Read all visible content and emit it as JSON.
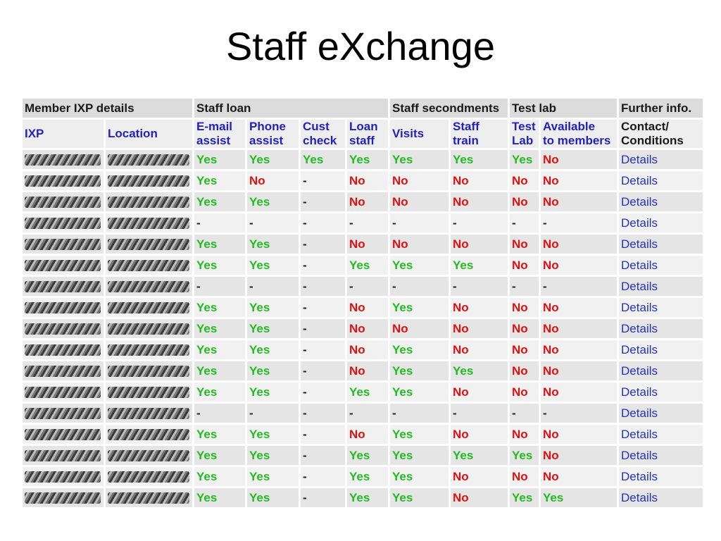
{
  "title": "Staff eXchange",
  "colors": {
    "yes": "#22bb22",
    "no": "#dd1111",
    "header_text": "#2222bb"
  },
  "table": {
    "groups": [
      {
        "label": "Member IXP details",
        "span": 2
      },
      {
        "label": "Staff loan",
        "span": 4
      },
      {
        "label": "Staff secondments",
        "span": 2
      },
      {
        "label": "Test lab",
        "span": 2
      },
      {
        "label": "Further info.",
        "span": 1
      }
    ],
    "headers": [
      "IXP",
      "Location",
      "E-mail\nassist",
      "Phone\nassist",
      "Cust\ncheck",
      "Loan\nstaff",
      "Visits",
      "Staff\ntrain",
      "Test\nLab",
      "Available\nto members",
      "Contact/\nConditions"
    ],
    "rows": [
      {
        "values": [
          "Yes",
          "Yes",
          "Yes",
          "Yes",
          "Yes",
          "Yes",
          "Yes",
          "No"
        ],
        "link": "Details"
      },
      {
        "values": [
          "Yes",
          "No",
          "-",
          "No",
          "No",
          "No",
          "No",
          "No"
        ],
        "link": "Details"
      },
      {
        "values": [
          "Yes",
          "Yes",
          "-",
          "No",
          "No",
          "No",
          "No",
          "No"
        ],
        "link": "Details"
      },
      {
        "values": [
          "-",
          "-",
          "-",
          "-",
          "-",
          "-",
          "-",
          "-"
        ],
        "link": "Details"
      },
      {
        "values": [
          "Yes",
          "Yes",
          "-",
          "No",
          "No",
          "No",
          "No",
          "No"
        ],
        "link": "Details"
      },
      {
        "values": [
          "Yes",
          "Yes",
          "-",
          "Yes",
          "Yes",
          "Yes",
          "No",
          "No"
        ],
        "link": "Details"
      },
      {
        "values": [
          "-",
          "-",
          "-",
          "-",
          "-",
          "-",
          "-",
          "-"
        ],
        "link": "Details"
      },
      {
        "values": [
          "Yes",
          "Yes",
          "-",
          "No",
          "Yes",
          "No",
          "No",
          "No"
        ],
        "link": "Details"
      },
      {
        "values": [
          "Yes",
          "Yes",
          "-",
          "No",
          "No",
          "No",
          "No",
          "No"
        ],
        "link": "Details"
      },
      {
        "values": [
          "Yes",
          "Yes",
          "-",
          "No",
          "Yes",
          "No",
          "No",
          "No"
        ],
        "link": "Details"
      },
      {
        "values": [
          "Yes",
          "Yes",
          "-",
          "No",
          "Yes",
          "Yes",
          "No",
          "No"
        ],
        "link": "Details"
      },
      {
        "values": [
          "Yes",
          "Yes",
          "-",
          "Yes",
          "Yes",
          "No",
          "No",
          "No"
        ],
        "link": "Details"
      },
      {
        "values": [
          "-",
          "-",
          "-",
          "-",
          "-",
          "-",
          "-",
          "-"
        ],
        "link": "Details"
      },
      {
        "values": [
          "Yes",
          "Yes",
          "-",
          "No",
          "Yes",
          "No",
          "No",
          "No"
        ],
        "link": "Details"
      },
      {
        "values": [
          "Yes",
          "Yes",
          "-",
          "Yes",
          "Yes",
          "Yes",
          "Yes",
          "No"
        ],
        "link": "Details"
      },
      {
        "values": [
          "Yes",
          "Yes",
          "-",
          "Yes",
          "Yes",
          "No",
          "No",
          "No"
        ],
        "link": "Details"
      },
      {
        "values": [
          "Yes",
          "Yes",
          "-",
          "Yes",
          "Yes",
          "No",
          "Yes",
          "Yes"
        ],
        "link": "Details"
      }
    ]
  }
}
